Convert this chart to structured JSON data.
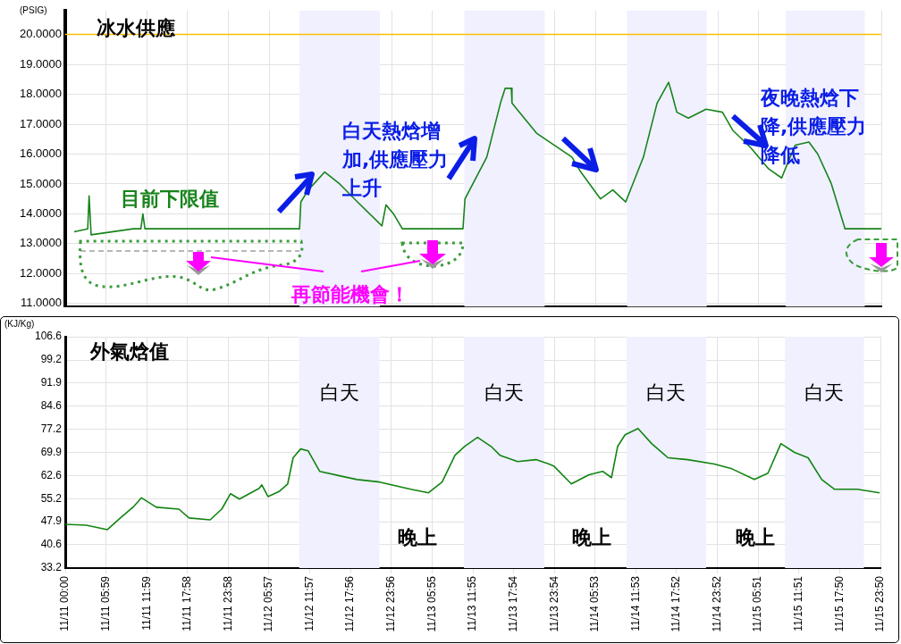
{
  "chart_data": [
    {
      "type": "line",
      "title": "冰水供應",
      "ylabel": "(PSIG)",
      "x": [
        "--11-11T01:18",
        "--11-11T03:18",
        "--11-11T03:30",
        "--11-11T03:48",
        "--11-11T10:00",
        "--11-11T11:06",
        "--11-11T11:24",
        "--11-11T11:42",
        "--11-12T01:00",
        "--11-12T10:24",
        "--11-12T10:36",
        "--11-12T11:42",
        "--11-12T14:06",
        "--11-12T16:18",
        "--11-12T18:54",
        "--11-12T22:30",
        "--11-12T23:06",
        "--11-13T00:12",
        "--11-13T01:30",
        "--11-13T06:00",
        "--11-13T10:24",
        "--11-13T10:42",
        "--11-13T13:54",
        "--11-13T15:54",
        "--11-13T16:36",
        "--11-13T17:30",
        "--11-13T17:36",
        "--11-13T21:12",
        "--11-14T02:24",
        "--11-14T03:42",
        "--11-14T06:36",
        "--11-14T08:24",
        "--11-14T10:18",
        "--11-14T12:54",
        "--11-14T14:54",
        "--11-14T16:36",
        "--11-14T17:06",
        "--11-14T17:48",
        "--11-14T19:30",
        "--11-14T22:06",
        "--11-15T00:30",
        "--11-15T02:00",
        "--11-15T04:42",
        "--11-15T07:18",
        "--11-15T09:12",
        "--11-15T09:54",
        "--11-15T11:12",
        "--11-15T13:12",
        "--11-15T14:30",
        "--11-15T16:30",
        "--11-15T18:30",
        "--11-15T20:24",
        "--11-15T23:50"
      ],
      "series": [
        {
          "color": "#17831b",
          "values": [
            13.4,
            13.5,
            14.6,
            13.3,
            13.5,
            13.5,
            14.0,
            13.5,
            13.5,
            13.5,
            14.4,
            14.8,
            15.4,
            15.0,
            14.4,
            13.6,
            14.3,
            14.0,
            13.5,
            13.5,
            13.5,
            14.5,
            15.9,
            17.7,
            18.2,
            18.2,
            17.7,
            16.7,
            15.9,
            15.4,
            14.5,
            14.8,
            14.4,
            15.9,
            17.7,
            18.4,
            18.0,
            17.4,
            17.2,
            17.5,
            17.4,
            16.8,
            16.2,
            15.5,
            15.2,
            15.6,
            16.3,
            16.4,
            16.0,
            15.0,
            13.5,
            13.5,
            13.5
          ]
        }
      ],
      "xlim": [
        "--11-11T00:00",
        "--11-15T23:50"
      ],
      "xticks": [
        {
          "value": "--11-11T00:00",
          "label": null
        },
        {
          "value": "--11-11T05:59",
          "label": null
        },
        {
          "value": "--11-11T11:59",
          "label": null
        },
        {
          "value": "--11-11T17:58",
          "label": null
        },
        {
          "value": "--11-11T23:58",
          "label": null
        },
        {
          "value": "--11-12T05:57",
          "label": null
        },
        {
          "value": "--11-12T11:57",
          "label": null
        },
        {
          "value": "--11-12T17:56",
          "label": null
        },
        {
          "value": "--11-12T23:56",
          "label": null
        },
        {
          "value": "--11-13T05:55",
          "label": null
        },
        {
          "value": "--11-13T11:55",
          "label": null
        },
        {
          "value": "--11-13T17:54",
          "label": null
        },
        {
          "value": "--11-13T23:54",
          "label": null
        },
        {
          "value": "--11-14T05:53",
          "label": null
        },
        {
          "value": "--11-14T11:53",
          "label": null
        },
        {
          "value": "--11-14T17:52",
          "label": null
        },
        {
          "value": "--11-14T23:52",
          "label": null
        },
        {
          "value": "--11-15T05:51",
          "label": null
        },
        {
          "value": "--11-15T11:51",
          "label": null
        },
        {
          "value": "--11-15T17:50",
          "label": null
        },
        {
          "value": "--11-15T23:50",
          "label": null
        }
      ],
      "ylim": [
        10.9,
        20.8
      ],
      "yticks": [
        {
          "value": 11,
          "label": "11.0000"
        },
        {
          "value": 12,
          "label": "12.0000"
        },
        {
          "value": 13,
          "label": "13.0000"
        },
        {
          "value": 14,
          "label": "14.0000"
        },
        {
          "value": 15,
          "label": "15.0000"
        },
        {
          "value": 16,
          "label": "16.0000"
        },
        {
          "value": 17,
          "label": "17.0000"
        },
        {
          "value": 18,
          "label": "18.0000"
        },
        {
          "value": 19,
          "label": "19.0000"
        },
        {
          "value": 20,
          "label": "20.0000"
        }
      ],
      "tick_labels": "y",
      "grid": true,
      "ref_lines": [
        {
          "axis": "y",
          "value": 20,
          "color": "#ffc000"
        }
      ],
      "bands": [
        {
          "axis": "x",
          "from": "--11-12T10:24",
          "to": "--11-12T22:12",
          "color": "#f0f0ff"
        },
        {
          "axis": "x",
          "from": "--11-13T10:36",
          "to": "--11-13T22:24",
          "color": "#f0f0ff"
        },
        {
          "axis": "x",
          "from": "--11-14T10:30",
          "to": "--11-14T22:12",
          "color": "#f0f0ff"
        },
        {
          "axis": "x",
          "from": "--11-15T09:48",
          "to": "--11-15T21:24",
          "color": "#f0f0ff"
        }
      ],
      "annotations": [
        "目前下限值",
        "白天熱焓增加,供應壓力上升",
        "再節能機會！",
        "夜晚熱焓下降,供應壓力降低"
      ]
    },
    {
      "type": "line",
      "title": "外氣焓值",
      "ylabel": "(KJ/Kg)",
      "x": [
        "--11-11T00:00",
        "--11-11T03:06",
        "--11-11T06:12",
        "--11-11T08:06",
        "--11-11T10:06",
        "--11-11T11:12",
        "--11-11T13:24",
        "--11-11T16:42",
        "--11-11T18:12",
        "--11-11T21:18",
        "--11-11T23:00",
        "--11-12T00:18",
        "--11-12T01:36",
        "--11-12T04:30",
        "--11-12T04:54",
        "--11-12T05:48",
        "--11-12T07:30",
        "--11-12T08:42",
        "--11-12T09:30",
        "--11-12T10:36",
        "--11-12T11:42",
        "--11-12T13:24",
        "--11-12T16:18",
        "--11-12T18:54",
        "--11-12T22:12",
        "--11-13T02:48",
        "--11-13T05:24",
        "--11-13T07:24",
        "--11-13T09:18",
        "--11-13T10:42",
        "--11-13T12:36",
        "--11-13T14:36",
        "--11-13T15:54",
        "--11-13T18:30",
        "--11-13T21:12",
        "--11-13T23:06",
        "--11-13T23:48",
        "--11-14T02:24",
        "--11-14T05:00",
        "--11-14T07:00",
        "--11-14T08:18",
        "--11-14T09:12",
        "--11-14T10:18",
        "--11-14T12:12",
        "--11-14T14:12",
        "--11-14T16:36",
        "--11-14T19:30",
        "--11-14T23:24",
        "--11-15T02:00",
        "--11-15T05:18",
        "--11-15T07:18",
        "--11-15T09:12",
        "--11-15T11:12",
        "--11-15T13:12",
        "--11-15T15:12",
        "--11-15T17:06",
        "--11-15T20:24",
        "--11-15T23:42"
      ],
      "series": [
        {
          "color": "#118411",
          "values": [
            47.1,
            46.8,
            45.4,
            49.1,
            52.8,
            55.5,
            52.5,
            51.9,
            49.1,
            48.5,
            51.9,
            56.8,
            55.1,
            58.5,
            59.6,
            55.9,
            57.6,
            59.9,
            68.2,
            71.0,
            70.4,
            63.9,
            62.5,
            61.3,
            60.5,
            58.2,
            57.1,
            60.5,
            69.0,
            71.8,
            74.7,
            71.8,
            69.0,
            67.0,
            67.6,
            66.2,
            65.6,
            59.9,
            62.8,
            63.9,
            61.9,
            71.8,
            75.5,
            77.5,
            72.7,
            68.2,
            67.6,
            66.2,
            64.7,
            61.3,
            63.3,
            72.7,
            69.9,
            68.2,
            61.3,
            58.2,
            58.2,
            57.1
          ]
        }
      ],
      "xlim": [
        "--11-11T00:00",
        "--11-15T23:50"
      ],
      "xticks": [
        {
          "value": "--11-11T00:00",
          "label": "11/11 00:00"
        },
        {
          "value": "--11-11T05:59",
          "label": "11/11 05:59"
        },
        {
          "value": "--11-11T11:59",
          "label": "11/11 11:59"
        },
        {
          "value": "--11-11T17:58",
          "label": "11/11 17:58"
        },
        {
          "value": "--11-11T23:58",
          "label": "11/11 23:58"
        },
        {
          "value": "--11-12T05:57",
          "label": "11/12 05:57"
        },
        {
          "value": "--11-12T11:57",
          "label": "11/12 11:57"
        },
        {
          "value": "--11-12T17:56",
          "label": "11/12 17:56"
        },
        {
          "value": "--11-12T23:56",
          "label": "11/12 23:56"
        },
        {
          "value": "--11-13T05:55",
          "label": "11/13 05:55"
        },
        {
          "value": "--11-13T11:55",
          "label": "11/13 11:55"
        },
        {
          "value": "--11-13T17:54",
          "label": "11/13 17:54"
        },
        {
          "value": "--11-13T23:54",
          "label": "11/13 23:54"
        },
        {
          "value": "--11-14T05:53",
          "label": "11/14 05:53"
        },
        {
          "value": "--11-14T11:53",
          "label": "11/14 11:53"
        },
        {
          "value": "--11-14T17:52",
          "label": "11/14 17:52"
        },
        {
          "value": "--11-14T23:52",
          "label": "11/14 23:52"
        },
        {
          "value": "--11-15T05:51",
          "label": "11/15 05:51"
        },
        {
          "value": "--11-15T11:51",
          "label": "11/15 11:51"
        },
        {
          "value": "--11-15T17:50",
          "label": "11/15 17:50"
        },
        {
          "value": "--11-15T23:50",
          "label": "11/15 23:50"
        }
      ],
      "ylim": [
        33.2,
        106.6
      ],
      "yticks": [
        33.2,
        40.6,
        47.9,
        55.2,
        62.6,
        69.9,
        77.2,
        84.6,
        91.9,
        99.2,
        106.6
      ],
      "grid": true,
      "bands": [
        {
          "axis": "x",
          "from": "--11-12T10:24",
          "to": "--11-12T22:12",
          "color": "#f0f0ff",
          "label": "白天"
        },
        {
          "axis": "x",
          "from": "--11-13T10:36",
          "to": "--11-13T22:24",
          "color": "#f0f0ff",
          "label": "白天"
        },
        {
          "axis": "x",
          "from": "--11-14T10:30",
          "to": "--11-14T22:12",
          "color": "#f0f0ff",
          "label": "白天"
        },
        {
          "axis": "x",
          "from": "--11-15T09:48",
          "to": "--11-15T21:24",
          "color": "#f0f0ff",
          "label": "白天"
        }
      ],
      "annotations": [
        "晚上",
        "晚上",
        "晚上"
      ]
    }
  ]
}
